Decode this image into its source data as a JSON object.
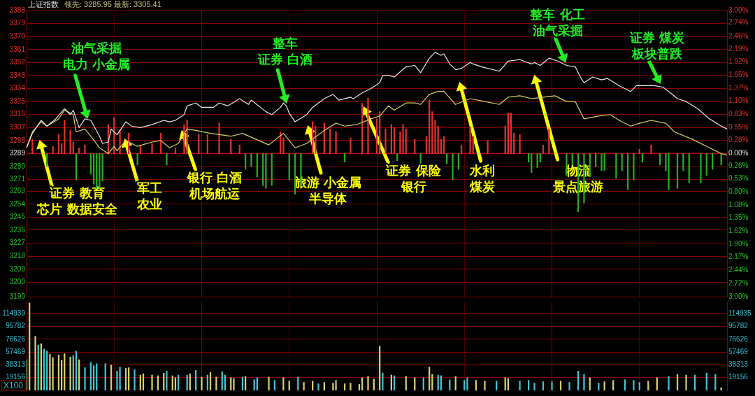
{
  "chart_data": [
    {
      "type": "line",
      "title": "上证指数",
      "subtitle": "领先: 3285.95 最新: 3305.41",
      "categories": [
        null,
        null,
        null,
        null,
        null,
        null,
        null,
        null,
        null,
        null,
        null,
        null,
        null,
        null,
        null,
        null,
        null,
        null,
        null,
        null,
        null,
        null,
        null,
        null,
        null,
        null,
        null,
        null,
        null,
        null,
        null,
        null,
        null,
        null,
        null,
        null,
        null,
        null,
        null,
        null,
        null,
        null,
        null,
        null,
        null,
        null,
        null,
        null,
        null,
        null,
        null,
        null,
        null,
        null,
        null,
        null,
        null,
        null,
        null,
        null,
        null,
        null,
        null,
        null,
        null,
        null,
        null,
        null,
        null,
        null,
        null,
        null,
        null,
        null,
        null,
        null,
        null,
        null,
        null,
        null,
        null,
        null,
        null,
        null,
        null,
        null,
        null,
        null,
        null,
        null,
        null,
        null,
        null,
        null,
        null,
        null,
        null,
        null,
        null,
        null,
        null,
        null,
        null,
        null,
        null,
        null,
        null,
        null,
        null,
        null,
        null,
        null,
        null,
        null,
        null,
        null,
        null,
        null,
        null,
        null,
        null,
        null,
        null,
        null,
        null,
        null,
        null,
        null,
        null,
        null,
        null,
        null,
        null,
        null,
        null,
        null,
        null,
        null,
        null,
        null,
        null,
        null,
        null,
        null,
        null,
        null,
        null,
        null,
        null,
        null,
        null,
        null,
        null,
        null,
        null,
        null,
        null,
        null,
        null,
        null,
        null,
        null,
        null,
        null,
        null,
        null,
        null,
        null,
        null,
        null,
        null,
        null,
        null,
        null,
        null,
        null,
        null,
        null,
        null,
        null,
        null,
        null,
        null,
        null,
        null,
        null,
        null,
        null,
        null,
        null,
        null,
        null,
        null,
        null,
        null,
        null,
        null,
        null,
        null,
        null,
        null,
        null,
        null,
        null,
        null,
        null,
        null,
        null,
        null,
        null,
        null,
        null,
        null,
        null,
        null,
        null,
        null,
        null,
        null,
        null,
        null,
        null,
        null,
        null,
        null,
        null,
        null,
        null,
        null,
        null,
        null,
        null,
        null,
        null,
        null,
        null,
        null,
        null,
        null,
        null,
        null
      ],
      "ylim": [
        3190,
        3388
      ],
      "yticks": [
        3388,
        3379,
        3370,
        3361,
        3352,
        3343,
        3334,
        3325,
        3316,
        3307,
        3298,
        3289,
        3280,
        3271,
        3263,
        3254,
        3245,
        3236,
        3227,
        3218,
        3209,
        3200,
        3190
      ],
      "y2lim": [
        -3,
        3
      ],
      "y2ticks": [
        {
          "value": 3,
          "label": "3.00%"
        },
        {
          "value": 2.74,
          "label": "2.74%"
        },
        {
          "value": 2.46,
          "label": "2.46%"
        },
        {
          "value": 2.19,
          "label": "2.19%"
        },
        {
          "value": 1.92,
          "label": "1.92%"
        },
        {
          "value": 1.65,
          "label": "1.65%"
        },
        {
          "value": 1.37,
          "label": "1.37%"
        },
        {
          "value": 1.1,
          "label": "1.10%"
        },
        {
          "value": 0.83,
          "label": "0.83%"
        },
        {
          "value": 0.55,
          "label": "0.55%"
        },
        {
          "value": 0.28,
          "label": "0.28%"
        },
        {
          "value": 0,
          "label": "0.00%"
        },
        {
          "value": -0.26,
          "label": "0.26%"
        },
        {
          "value": -0.53,
          "label": "0.53%"
        },
        {
          "value": -0.8,
          "label": "0.80%"
        },
        {
          "value": -1.08,
          "label": "1.08%"
        },
        {
          "value": -1.35,
          "label": "1.35%"
        },
        {
          "value": -1.62,
          "label": "1.62%"
        },
        {
          "value": -1.9,
          "label": "1.90%"
        },
        {
          "value": -2.17,
          "label": "2.17%"
        },
        {
          "value": -2.44,
          "label": "2.44%"
        },
        {
          "value": -2.72,
          "label": "2.72%"
        },
        {
          "value": -3,
          "label": "3.00%"
        }
      ],
      "grid": true,
      "legend": false,
      "tick_labels": "y",
      "marker": "none",
      "line_style": "solid",
      "ref_lines": [
        {
          "axis": "y",
          "value": 3289,
          "color": "#c00000"
        }
      ],
      "series": [
        {
          "type": "line",
          "color": "#e8e8e8",
          "values": [
            3293,
            null,
            3303,
            null,
            null,
            3312,
            null,
            3308,
            null,
            null,
            3313,
            null,
            null,
            3320,
            null,
            3316,
            3319,
            null,
            3307,
            null,
            3313,
            null,
            3312,
            null,
            null,
            3301,
            3296,
            null,
            3297,
            3306,
            null,
            3302,
            null,
            null,
            3311,
            null,
            3308,
            null,
            null,
            3307,
            null,
            null,
            null,
            3309,
            null,
            null,
            null,
            3312,
            null,
            3311,
            null,
            3312,
            null,
            null,
            3316,
            3322,
            null,
            null,
            3324,
            null,
            3321,
            null,
            null,
            null,
            3321,
            null,
            3324,
            null,
            null,
            3322,
            null,
            null,
            null,
            3327,
            null,
            null,
            3323,
            3326,
            null,
            null,
            null,
            null,
            3318,
            null,
            3316,
            null,
            null,
            3321,
            3324,
            3322,
            3317,
            null,
            3311,
            null,
            null,
            null,
            3316,
            null,
            3321,
            null,
            null,
            null,
            3327,
            null,
            null,
            3330,
            null,
            3326,
            null,
            null,
            null,
            3328,
            3327,
            null,
            null,
            3331,
            null,
            null,
            3334,
            null,
            null,
            3338,
            3343,
            null,
            3343,
            null,
            3342,
            null,
            null,
            null,
            3349,
            null,
            null,
            3350,
            null,
            3345,
            null,
            null,
            3355,
            null,
            3359,
            null,
            3357,
            3358,
            null,
            3351,
            null,
            3347,
            null,
            3348,
            null,
            null,
            3352,
            3351,
            null,
            null,
            3349,
            null,
            null,
            null,
            null,
            null,
            3346,
            null,
            null,
            3353,
            null,
            null,
            null,
            3354,
            null,
            null,
            null,
            3351,
            3352,
            null,
            3350,
            null,
            null,
            3355,
            null,
            null,
            3353,
            null,
            null,
            3350,
            null,
            null,
            3349,
            null,
            3341,
            3338,
            null,
            null,
            3342,
            null,
            null,
            3340,
            null,
            3341,
            null,
            null,
            null,
            3336,
            null,
            null,
            null,
            3332,
            null,
            3336,
            null,
            null,
            null,
            3336,
            null,
            3336,
            null,
            null,
            3335,
            null,
            3332,
            null,
            null,
            3327,
            null,
            null,
            3325,
            null,
            null,
            null,
            3320,
            null,
            null,
            null,
            3313,
            null,
            null,
            null,
            3308,
            null,
            3306
          ]
        },
        {
          "type": "line",
          "color": "#d8d060",
          "values": [
            3293,
            null,
            3304,
            null,
            null,
            3311,
            null,
            3308,
            null,
            null,
            null,
            3313,
            null,
            3319,
            null,
            null,
            3316,
            3304,
            null,
            null,
            3306,
            null,
            3301,
            null,
            null,
            3293,
            null,
            null,
            3289,
            null,
            3294,
            3291,
            null,
            null,
            3298,
            null,
            null,
            null,
            3294,
            null,
            null,
            null,
            null,
            3297,
            null,
            null,
            3298,
            null,
            null,
            3293,
            null,
            null,
            3296,
            null,
            null,
            3306,
            null,
            null,
            3305,
            null,
            null,
            null,
            null,
            3303,
            null,
            null,
            null,
            null,
            null,
            null,
            3301,
            null,
            null,
            null,
            3303,
            null,
            null,
            null,
            null,
            null,
            null,
            null,
            null,
            3295,
            null,
            null,
            null,
            null,
            3303,
            null,
            null,
            null,
            3293,
            null,
            null,
            null,
            3296,
            null,
            null,
            null,
            null,
            null,
            3305,
            null,
            null,
            null,
            3310,
            null,
            null,
            3308,
            null,
            null,
            null,
            3309,
            null,
            null,
            null,
            null,
            3313,
            null,
            null,
            3315,
            null,
            null,
            3322,
            null,
            3319,
            null,
            null,
            null,
            3324,
            null,
            null,
            3324,
            null,
            3323,
            null,
            null,
            3330,
            null,
            null,
            3332,
            null,
            3332,
            null,
            null,
            null,
            3323,
            null,
            null,
            null,
            null,
            3327,
            null,
            null,
            null,
            null,
            3325,
            null,
            null,
            null,
            null,
            3323,
            null,
            null,
            3328,
            null,
            null,
            null,
            3329,
            null,
            null,
            null,
            3327,
            null,
            null,
            null,
            null,
            null,
            null,
            null,
            3329,
            null,
            null,
            null,
            3325,
            null,
            null,
            3325,
            null,
            null,
            3313,
            null,
            null,
            null,
            null,
            3315,
            null,
            null,
            null,
            3316,
            null,
            null,
            3312,
            null,
            null,
            null,
            3308,
            null,
            null,
            3310,
            null,
            null,
            null,
            3312,
            null,
            null,
            null,
            null,
            3310,
            null,
            null,
            3304,
            null,
            null,
            null,
            null,
            null,
            3299,
            null,
            null,
            null,
            null,
            null,
            3293,
            null,
            null,
            null,
            3289,
            null,
            3288
          ]
        },
        {
          "type": "bar",
          "axis": "y2",
          "color": "#e03030",
          "values": [
            null,
            null,
            0.3,
            null,
            null,
            null,
            null,
            null,
            null,
            0.15,
            null,
            0.4,
            0.21,
            0.7,
            null,
            0.49,
            0.24,
            null,
            0.12,
            null,
            0.18,
            null,
            null,
            null,
            null,
            null,
            null,
            null,
            0.61,
            null,
            0.76,
            null,
            0.49,
            null,
            null,
            0.43,
            null,
            null,
            null,
            0.18,
            null,
            null,
            null,
            0.21,
            null,
            null,
            0.43,
            null,
            null,
            null,
            null,
            0.12,
            null,
            null,
            0.61,
            0.7,
            null,
            null,
            null,
            0.4,
            null,
            null,
            0.4,
            null,
            null,
            null,
            0.64,
            null,
            null,
            null,
            0.3,
            null,
            null,
            0.18,
            null,
            null,
            null,
            null,
            null,
            null,
            null,
            null,
            null,
            null,
            null,
            null,
            null,
            0.46,
            0.33,
            null,
            null,
            null,
            null,
            null,
            null,
            null,
            null,
            null,
            0.67,
            0.58,
            null,
            null,
            0.64,
            null,
            0.52,
            null,
            0.46,
            null,
            null,
            null,
            null,
            0.33,
            null,
            null,
            null,
            1.06,
            null,
            1.16,
            null,
            null,
            0.73,
            0.88,
            null,
            0.52,
            null,
            0.61,
            0.55,
            null,
            0.46,
            0.61,
            0.52,
            null,
            null,
            0.3,
            null,
            null,
            null,
            0.36,
            1.12,
            0.88,
            0.7,
            0.58,
            0.3,
            0.36,
            null,
            null,
            null,
            null,
            null,
            0.18,
            null,
            null,
            0.55,
            0.36,
            null,
            null,
            null,
            null,
            0.27,
            null,
            null,
            null,
            null,
            null,
            0.58,
            0.85,
            0.85,
            0.43,
            null,
            0.4,
            null,
            null,
            null,
            null,
            null,
            null,
            null,
            0.18,
            null,
            0.52,
            null,
            null,
            null,
            null,
            null,
            null,
            null,
            null,
            null,
            null,
            null,
            null,
            null,
            null,
            null,
            null,
            null,
            null,
            null,
            null,
            null,
            null,
            null,
            null,
            null,
            null,
            null,
            null,
            null,
            null,
            0.09,
            null,
            null,
            null,
            0.18,
            null,
            null,
            null,
            null,
            null,
            null,
            null,
            null,
            null,
            null,
            null,
            null,
            null,
            null,
            null,
            null,
            null,
            null,
            null,
            null,
            null,
            null,
            null,
            null,
            null,
            null
          ]
        },
        {
          "type": "bar",
          "axis": "y2",
          "color": "#20b020",
          "values": [
            null,
            null,
            null,
            null,
            null,
            null,
            null,
            -0.27,
            null,
            null,
            null,
            null,
            null,
            null,
            null,
            null,
            null,
            -0.55,
            null,
            null,
            null,
            null,
            -0.43,
            -0.64,
            -0.73,
            -0.73,
            -0.58,
            null,
            null,
            null,
            null,
            null,
            null,
            null,
            null,
            null,
            null,
            null,
            -0.24,
            null,
            null,
            null,
            null,
            null,
            null,
            null,
            null,
            null,
            -0.24,
            null,
            null,
            null,
            null,
            null,
            null,
            null,
            null,
            null,
            null,
            null,
            null,
            null,
            null,
            null,
            null,
            null,
            null,
            null,
            null,
            null,
            null,
            null,
            null,
            null,
            null,
            -0.33,
            null,
            -0.27,
            null,
            -0.49,
            null,
            -0.67,
            -0.73,
            null,
            -0.67,
            null,
            null,
            null,
            null,
            null,
            -0.55,
            null,
            -0.85,
            null,
            -0.67,
            null,
            null,
            null,
            null,
            null,
            null,
            null,
            null,
            null,
            null,
            null,
            null,
            null,
            null,
            -0.18,
            null,
            null,
            null,
            null,
            null,
            null,
            null,
            null,
            null,
            null,
            null,
            null,
            null,
            null,
            null,
            null,
            null,
            -0.15,
            null,
            null,
            null,
            null,
            null,
            null,
            null,
            -0.21,
            null,
            null,
            null,
            null,
            null,
            null,
            null,
            null,
            -0.21,
            null,
            -0.55,
            null,
            -0.33,
            null,
            null,
            null,
            null,
            null,
            null,
            null,
            null,
            null,
            null,
            null,
            null,
            null,
            null,
            null,
            null,
            null,
            null,
            null,
            null,
            null,
            null,
            null,
            -0.18,
            -0.4,
            null,
            -0.3,
            -0.18,
            null,
            null,
            null,
            null,
            null,
            null,
            null,
            null,
            -0.46,
            null,
            -0.24,
            null,
            -1.22,
            null,
            -1.03,
            null,
            -0.49,
            null,
            -0.27,
            null,
            -0.36,
            -0.36,
            null,
            null,
            null,
            -0.52,
            null,
            -0.36,
            null,
            -0.76,
            null,
            -0.55,
            null,
            null,
            -0.18,
            null,
            null,
            null,
            null,
            null,
            -0.24,
            null,
            -0.36,
            -0.76,
            null,
            null,
            -0.73,
            null,
            -0.36,
            null,
            -0.61,
            null,
            null,
            null,
            -0.61,
            null,
            -0.46,
            null,
            -0.33,
            null,
            null,
            -0.24,
            null,
            null
          ]
        }
      ],
      "annotations": [
        "油气采掘电力 小金属",
        "整车证券 白酒",
        "整车 化工油气采掘",
        "证券 煤炭板块普跌",
        "证券 教育芯片 数据安全",
        "军工农业",
        "银行 白酒机场航运",
        "旅游 小金属半导体",
        "证券 保险银行",
        "水利煤炭",
        "物流景点旅游"
      ]
    },
    {
      "type": "bar",
      "categories": [
        null,
        null,
        null,
        null,
        null,
        null,
        null,
        null,
        null,
        null,
        null,
        null,
        null,
        null,
        null,
        null,
        null,
        null,
        null,
        null,
        null,
        null,
        null,
        null,
        null,
        null,
        null,
        null,
        null,
        null,
        null,
        null,
        null,
        null,
        null,
        null,
        null,
        null,
        null,
        null,
        null,
        null,
        null,
        null,
        null,
        null,
        null,
        null,
        null,
        null,
        null,
        null,
        null,
        null,
        null,
        null,
        null,
        null,
        null,
        null,
        null,
        null,
        null,
        null,
        null,
        null,
        null,
        null,
        null,
        null,
        null,
        null,
        null,
        null,
        null,
        null,
        null,
        null,
        null,
        null,
        null,
        null,
        null,
        null,
        null,
        null,
        null,
        null,
        null,
        null,
        null,
        null,
        null,
        null,
        null,
        null,
        null,
        null,
        null,
        null,
        null,
        null,
        null,
        null,
        null,
        null,
        null,
        null,
        null,
        null,
        null,
        null,
        null,
        null,
        null,
        null,
        null,
        null,
        null,
        null,
        null,
        null,
        null,
        null,
        null,
        null,
        null,
        null,
        null,
        null,
        null,
        null,
        null,
        null,
        null,
        null,
        null,
        null,
        null,
        null,
        null,
        null,
        null,
        null,
        null,
        null,
        null,
        null,
        null,
        null,
        null,
        null,
        null,
        null,
        null,
        null,
        null,
        null,
        null,
        null,
        null,
        null,
        null,
        null,
        null,
        null,
        null,
        null,
        null,
        null,
        null,
        null,
        null,
        null,
        null,
        null,
        null,
        null,
        null,
        null,
        null,
        null,
        null,
        null,
        null,
        null,
        null,
        null,
        null,
        null,
        null,
        null,
        null,
        null,
        null,
        null,
        null,
        null,
        null,
        null,
        null,
        null,
        null,
        null,
        null,
        null,
        null,
        null,
        null,
        null,
        null,
        null,
        null,
        null,
        null,
        null,
        null,
        null,
        null,
        null,
        null,
        null,
        null,
        null,
        null,
        null,
        null,
        null,
        null,
        null,
        null,
        null,
        null,
        null,
        null,
        null,
        null,
        null,
        null,
        null,
        null
      ],
      "ylim": [
        0,
        132000
      ],
      "yticks": [
        19156,
        38313,
        57469,
        76626,
        95782,
        114939
      ],
      "y2lim": [
        0,
        132000
      ],
      "y2ticks": [
        19156,
        38313,
        57469,
        76626,
        95782,
        114935
      ],
      "grid": true,
      "legend": false,
      "tick_labels": "y",
      "annotations": [
        "X100"
      ],
      "values": [
        46000,
        131000,
        null,
        81000,
        68000,
        70000,
        62000,
        59000,
        54000,
        49000,
        null,
        53000,
        45000,
        55000,
        null,
        50000,
        52000,
        59000,
        46000,
        null,
        34000,
        null,
        42000,
        37000,
        40000,
        null,
        null,
        40000,
        null,
        38000,
        null,
        29000,
        35000,
        null,
        33000,
        34000,
        null,
        31000,
        null,
        23000,
        25000,
        null,
        null,
        23000,
        null,
        22000,
        null,
        26000,
        29000,
        null,
        22000,
        19000,
        23000,
        null,
        null,
        23000,
        25000,
        null,
        30000,
        null,
        20000,
        null,
        23000,
        27000,
        null,
        20000,
        null,
        28000,
        23000,
        null,
        19000,
        18000,
        null,
        null,
        20000,
        21000,
        null,
        null,
        16000,
        19000,
        null,
        null,
        null,
        20000,
        null,
        15000,
        null,
        null,
        19000,
        null,
        14000,
        null,
        null,
        20000,
        null,
        12000,
        null,
        null,
        14000,
        null,
        10000,
        null,
        12000,
        null,
        null,
        11000,
        15000,
        null,
        null,
        10000,
        null,
        11000,
        null,
        null,
        9000,
        19000,
        null,
        21000,
        null,
        17000,
        null,
        66000,
        26000,
        null,
        null,
        23000,
        22000,
        null,
        null,
        null,
        21000,
        null,
        null,
        19000,
        null,
        null,
        19000,
        null,
        35000,
        24000,
        null,
        23000,
        22000,
        null,
        null,
        16000,
        null,
        21000,
        null,
        null,
        15000,
        19000,
        null,
        null,
        15000,
        null,
        null,
        14000,
        null,
        null,
        null,
        14000,
        null,
        null,
        19000,
        18000,
        null,
        null,
        null,
        14000,
        null,
        null,
        15000,
        null,
        11000,
        null,
        null,
        13000,
        null,
        null,
        13000,
        null,
        null,
        14000,
        null,
        null,
        12000,
        null,
        null,
        29000,
        null,
        24000,
        null,
        19000,
        null,
        null,
        11000,
        null,
        13000,
        null,
        null,
        15000,
        null,
        null,
        null,
        16000,
        null,
        null,
        15000,
        null,
        12000,
        null,
        null,
        14000,
        null,
        null,
        19000,
        null,
        null,
        null,
        21000,
        null,
        null,
        24000,
        null,
        null,
        23000,
        null,
        null,
        23000,
        null,
        null,
        null,
        26000,
        null,
        null,
        24000,
        null,
        4000,
        null,
        null
      ],
      "colors": [
        "#d8cf6e",
        "#d8cf6e",
        null,
        "#d8cf6e",
        "#3ec6d6",
        "#d8cf6e",
        "#3ec6d6",
        "#3ec6d6",
        "#d8cf6e",
        "#d8cf6e",
        null,
        "#d8cf6e",
        "#d8cf6e",
        "#d8cf6e",
        null,
        "#d8cf6e",
        "#3ec6d6",
        "#3ec6d6",
        "#d8cf6e",
        null,
        "#3ec6d6",
        null,
        "#3ec6d6",
        "#3ec6d6",
        "#3ec6d6",
        null,
        null,
        "#3ec6d6",
        null,
        "#d8cf6e",
        null,
        "#3ec6d6",
        "#3ec6d6",
        null,
        "#d8cf6e",
        "#d8cf6e",
        null,
        "#3ec6d6",
        null,
        "#d8cf6e",
        "#d8cf6e",
        null,
        null,
        "#d8cf6e",
        null,
        "#d8cf6e",
        null,
        "#d8cf6e",
        "#3ec6d6",
        null,
        "#d8cf6e",
        "#d8cf6e",
        "#3ec6d6",
        null,
        null,
        "#3ec6d6",
        "#d8cf6e",
        null,
        "#3ec6d6",
        null,
        "#d8cf6e",
        null,
        "#3ec6d6",
        "#d8cf6e",
        null,
        "#d8cf6e",
        null,
        "#3ec6d6",
        "#3ec6d6",
        null,
        "#d8cf6e",
        "#d8cf6e",
        null,
        null,
        "#3ec6d6",
        "#d8cf6e",
        null,
        null,
        "#3ec6d6",
        "#3ec6d6",
        null,
        null,
        null,
        "#d8cf6e",
        null,
        "#3ec6d6",
        null,
        null,
        "#d8cf6e",
        null,
        "#d8cf6e",
        null,
        null,
        "#3ec6d6",
        null,
        "#d8cf6e",
        null,
        null,
        "#d8cf6e",
        null,
        "#3ec6d6",
        null,
        "#d8cf6e",
        null,
        null,
        "#d8cf6e",
        "#d8cf6e",
        null,
        null,
        "#d8cf6e",
        null,
        "#d8cf6e",
        null,
        null,
        "#d8cf6e",
        "#d8cf6e",
        null,
        "#d8cf6e",
        null,
        "#d8cf6e",
        null,
        "#d8cf6e",
        "#3ec6d6",
        null,
        null,
        "#d8cf6e",
        "#3ec6d6",
        null,
        null,
        null,
        "#d8cf6e",
        null,
        null,
        "#d8cf6e",
        null,
        null,
        "#3ec6d6",
        null,
        "#d8cf6e",
        "#d8cf6e",
        null,
        "#3ec6d6",
        "#3ec6d6",
        null,
        null,
        "#3ec6d6",
        null,
        "#d8cf6e",
        null,
        null,
        "#3ec6d6",
        "#3ec6d6",
        null,
        null,
        "#d8cf6e",
        null,
        null,
        "#d8cf6e",
        null,
        null,
        null,
        "#3ec6d6",
        null,
        null,
        "#d8cf6e",
        "#d8cf6e",
        null,
        null,
        null,
        "#3ec6d6",
        null,
        null,
        "#3ec6d6",
        null,
        "#3ec6d6",
        null,
        null,
        "#3ec6d6",
        null,
        null,
        "#3ec6d6",
        null,
        null,
        "#d8cf6e",
        null,
        null,
        "#3ec6d6",
        null,
        null,
        "#3ec6d6",
        null,
        "#3ec6d6",
        null,
        "#d8cf6e",
        null,
        null,
        "#3ec6d6",
        null,
        "#d8cf6e",
        null,
        null,
        "#d8cf6e",
        null,
        null,
        null,
        "#3ec6d6",
        null,
        null,
        "#3ec6d6",
        null,
        "#3ec6d6",
        null,
        null,
        "#d8cf6e",
        null,
        null,
        "#d8cf6e",
        null,
        null,
        null,
        "#3ec6d6",
        null,
        null,
        "#d8cf6e",
        null,
        null,
        "#d8cf6e",
        null,
        null,
        "#3ec6d6",
        null,
        null,
        null,
        "#3ec6d6",
        null,
        null,
        "#3ec6d6",
        null,
        "#d8cf6e",
        null,
        null
      ]
    }
  ]
}
